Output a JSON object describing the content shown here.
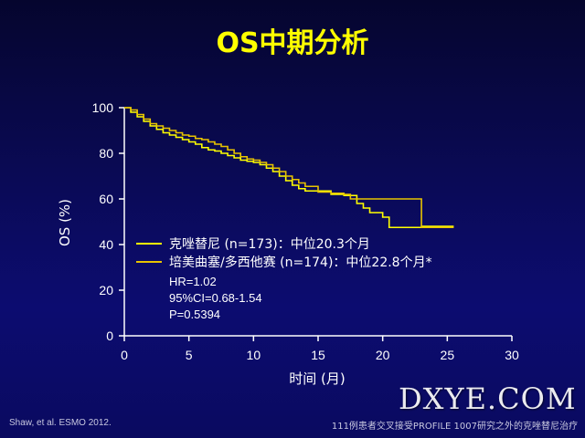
{
  "title": "OS中期分析",
  "citation": "Shaw, et al. ESMO 2012.",
  "footnote": "111例患者交叉接受PROFILE 1007研究之外的克唑替尼治疗",
  "watermark": "DXYE.COM",
  "chart_data": {
    "type": "line",
    "title": "",
    "xlabel": "时间 (月)",
    "ylabel": "OS (%)",
    "xlim": [
      0,
      30
    ],
    "ylim": [
      0,
      100
    ],
    "xticks": [
      0,
      5,
      10,
      15,
      20,
      25,
      30
    ],
    "yticks": [
      0,
      20,
      40,
      60,
      80,
      100
    ],
    "step": true,
    "grid": false,
    "legend_position": "lower-left",
    "series": [
      {
        "name": "克唑替尼 (n=173)：中位20.3个月",
        "color": "#ffff00",
        "x": [
          0,
          0.5,
          1.0,
          1.5,
          2.0,
          2.5,
          3.0,
          3.5,
          4.0,
          4.5,
          5.0,
          5.5,
          6.0,
          6.5,
          7.0,
          7.5,
          8.0,
          8.5,
          9.0,
          9.5,
          10.0,
          10.5,
          11.0,
          11.5,
          12.0,
          12.5,
          13.0,
          13.5,
          14.0,
          15.0,
          16.0,
          17.0,
          18.0,
          18.5,
          19.0,
          20.0,
          20.5,
          23.0,
          25.5
        ],
        "y": [
          100,
          98,
          96,
          94,
          92,
          90.5,
          89,
          88,
          87,
          86,
          85,
          84,
          82.5,
          81.5,
          81,
          80,
          79,
          78,
          77,
          76.5,
          76,
          75,
          73.5,
          72,
          70,
          68,
          66,
          64.5,
          63.5,
          63.5,
          62,
          61.5,
          58,
          56,
          54,
          52,
          47.5,
          48,
          48
        ]
      },
      {
        "name": "培美曲塞/多西他赛 (n=174)：中位22.8个月*",
        "color": "#e8c400",
        "x": [
          0,
          0.5,
          1.0,
          1.5,
          2.0,
          2.5,
          3.0,
          3.5,
          4.0,
          4.5,
          5.0,
          5.5,
          6.0,
          6.5,
          7.0,
          7.5,
          8.0,
          8.5,
          9.0,
          9.5,
          10.0,
          10.5,
          11.0,
          11.5,
          12.0,
          12.5,
          13.0,
          13.5,
          14.0,
          15.0,
          16.0,
          17.0,
          17.5,
          19.0,
          20.0,
          21.0,
          23.0,
          24.0,
          25.5
        ],
        "y": [
          100,
          99,
          97,
          95,
          93,
          92,
          91,
          90,
          89,
          88,
          87.5,
          86.5,
          86,
          85,
          84,
          83,
          81.5,
          80,
          78.5,
          77.5,
          77,
          76,
          75,
          73.5,
          72,
          70,
          68.5,
          67,
          65.5,
          63,
          62.5,
          62,
          60,
          60,
          60,
          60,
          47.5,
          47.5,
          47.5
        ]
      }
    ],
    "annotations": [
      "HR=1.02",
      "95%CI=0.68-1.54",
      "P=0.5394"
    ]
  }
}
